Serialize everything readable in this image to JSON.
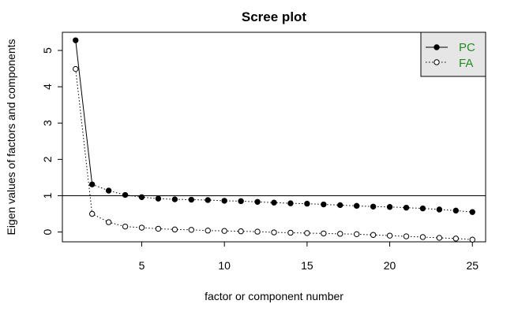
{
  "chart_data": {
    "type": "line",
    "title": "Scree plot",
    "xlabel": "factor or component number",
    "ylabel": "Eigen values of factors and components",
    "x": [
      1,
      2,
      3,
      4,
      5,
      6,
      7,
      8,
      9,
      10,
      11,
      12,
      13,
      14,
      15,
      16,
      17,
      18,
      19,
      20,
      21,
      22,
      23,
      24,
      25
    ],
    "xlim": [
      0.2,
      25.8
    ],
    "ylim": [
      -0.27,
      5.5
    ],
    "x_ticks": [
      5,
      10,
      15,
      20,
      25
    ],
    "y_ticks": [
      0,
      1,
      2,
      3,
      4,
      5
    ],
    "reference_line": {
      "y": 1
    },
    "legend_position": "top-right",
    "series": [
      {
        "name": "PC",
        "marker": "filled-circle",
        "line_style": "solid-then-dotted",
        "color": "#000000",
        "values": [
          5.28,
          1.31,
          1.14,
          1.02,
          0.96,
          0.92,
          0.9,
          0.89,
          0.88,
          0.86,
          0.85,
          0.83,
          0.81,
          0.79,
          0.78,
          0.76,
          0.74,
          0.72,
          0.7,
          0.69,
          0.67,
          0.65,
          0.62,
          0.59,
          0.55
        ]
      },
      {
        "name": "FA",
        "marker": "open-circle",
        "line_style": "dotted",
        "color": "#000000",
        "values": [
          4.49,
          0.5,
          0.27,
          0.15,
          0.12,
          0.09,
          0.07,
          0.06,
          0.04,
          0.03,
          0.02,
          0.01,
          -0.01,
          -0.02,
          -0.03,
          -0.04,
          -0.05,
          -0.06,
          -0.08,
          -0.1,
          -0.12,
          -0.14,
          -0.16,
          -0.18,
          -0.21
        ]
      }
    ],
    "legend": {
      "background": "#e6e6e6",
      "text_color": "#228b22"
    }
  }
}
